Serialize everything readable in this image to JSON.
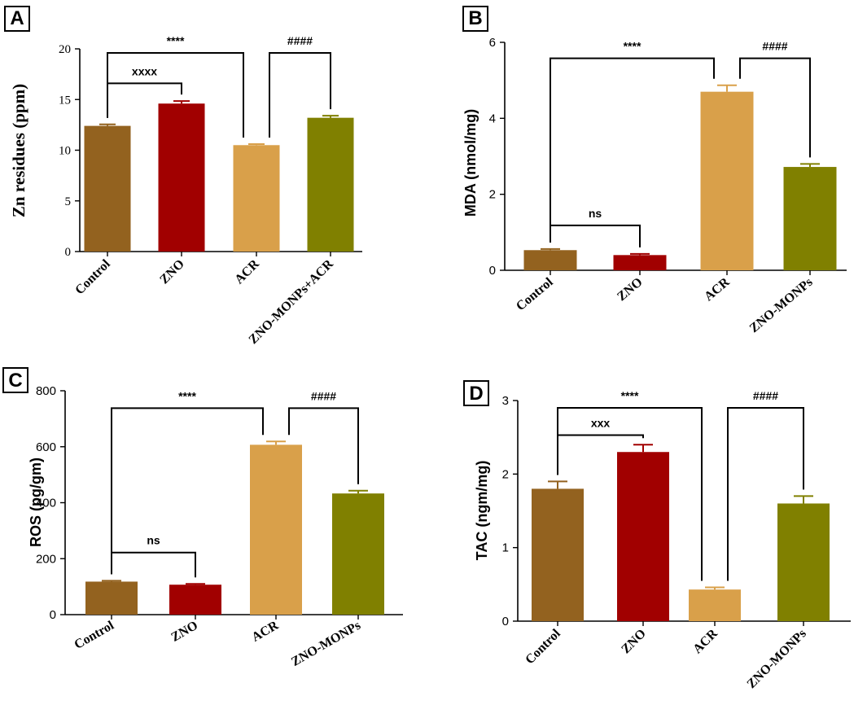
{
  "colors": [
    "#93621F",
    "#A10000",
    "#D9A04A",
    "#808000"
  ],
  "chart_data": [
    {
      "panel": "A",
      "type": "bar",
      "ylabel": "Zn residues (ppm)",
      "categories": [
        "Control",
        "ZNO",
        "ACR",
        "ZNO-MONPs+ACR"
      ],
      "values": [
        12.4,
        14.6,
        10.5,
        13.2
      ],
      "errors": [
        0.15,
        0.25,
        0.1,
        0.2
      ],
      "ylim": [
        0,
        20
      ],
      "yticks": [
        "0",
        "5",
        "10",
        "15",
        "20"
      ],
      "brackets": [
        {
          "from": 0,
          "to": 2,
          "level": 19.6,
          "label": "****"
        },
        {
          "from": 0,
          "to": 1,
          "level": 16.6,
          "label": "xxxx"
        },
        {
          "from": 2,
          "to": 3,
          "level": 19.6,
          "label": "####"
        }
      ]
    },
    {
      "panel": "B",
      "type": "bar",
      "ylabel": "MDA (nmol/mg)",
      "categories": [
        "Control",
        "ZNO",
        "ACR",
        "ZNO-MONPs"
      ],
      "values": [
        0.53,
        0.4,
        4.7,
        2.72
      ],
      "errors": [
        0.03,
        0.03,
        0.17,
        0.08
      ],
      "ylim": [
        0,
        6
      ],
      "yticks": [
        "0",
        "2",
        "4",
        "6"
      ],
      "brackets": [
        {
          "from": 0,
          "to": 2,
          "level": 5.58,
          "label": "****"
        },
        {
          "from": 0,
          "to": 1,
          "level": 1.18,
          "label": "ns"
        },
        {
          "from": 2,
          "to": 3,
          "level": 5.58,
          "label": "####"
        }
      ]
    },
    {
      "panel": "C",
      "type": "bar",
      "ylabel": "ROS (pg/gm)",
      "categories": [
        "Control",
        "ZNO",
        "ACR",
        "ZNO-MONPs"
      ],
      "values": [
        118,
        107,
        607,
        433
      ],
      "errors": [
        3,
        3,
        12,
        10
      ],
      "ylim": [
        0,
        800
      ],
      "yticks": [
        "0",
        "200",
        "400",
        "600",
        "800"
      ],
      "brackets": [
        {
          "from": 0,
          "to": 2,
          "level": 738,
          "label": "****"
        },
        {
          "from": 0,
          "to": 1,
          "level": 222,
          "label": "ns"
        },
        {
          "from": 2,
          "to": 3,
          "level": 738,
          "label": "####"
        }
      ]
    },
    {
      "panel": "D",
      "type": "bar",
      "ylabel": "TAC (ngm/mg)",
      "categories": [
        "Control",
        "ZNO",
        "ACR",
        "ZNO-MONPs"
      ],
      "values": [
        1.8,
        2.3,
        0.43,
        1.6
      ],
      "errors": [
        0.1,
        0.1,
        0.03,
        0.1
      ],
      "ylim": [
        0,
        3
      ],
      "yticks": [
        "0",
        "1",
        "2",
        "3"
      ],
      "brackets": [
        {
          "from": 0,
          "to": 2,
          "level": 2.9,
          "label": "****"
        },
        {
          "from": 0,
          "to": 1,
          "level": 2.53,
          "label": "xxx"
        },
        {
          "from": 2,
          "to": 3,
          "level": 2.9,
          "label": "####"
        }
      ]
    }
  ]
}
